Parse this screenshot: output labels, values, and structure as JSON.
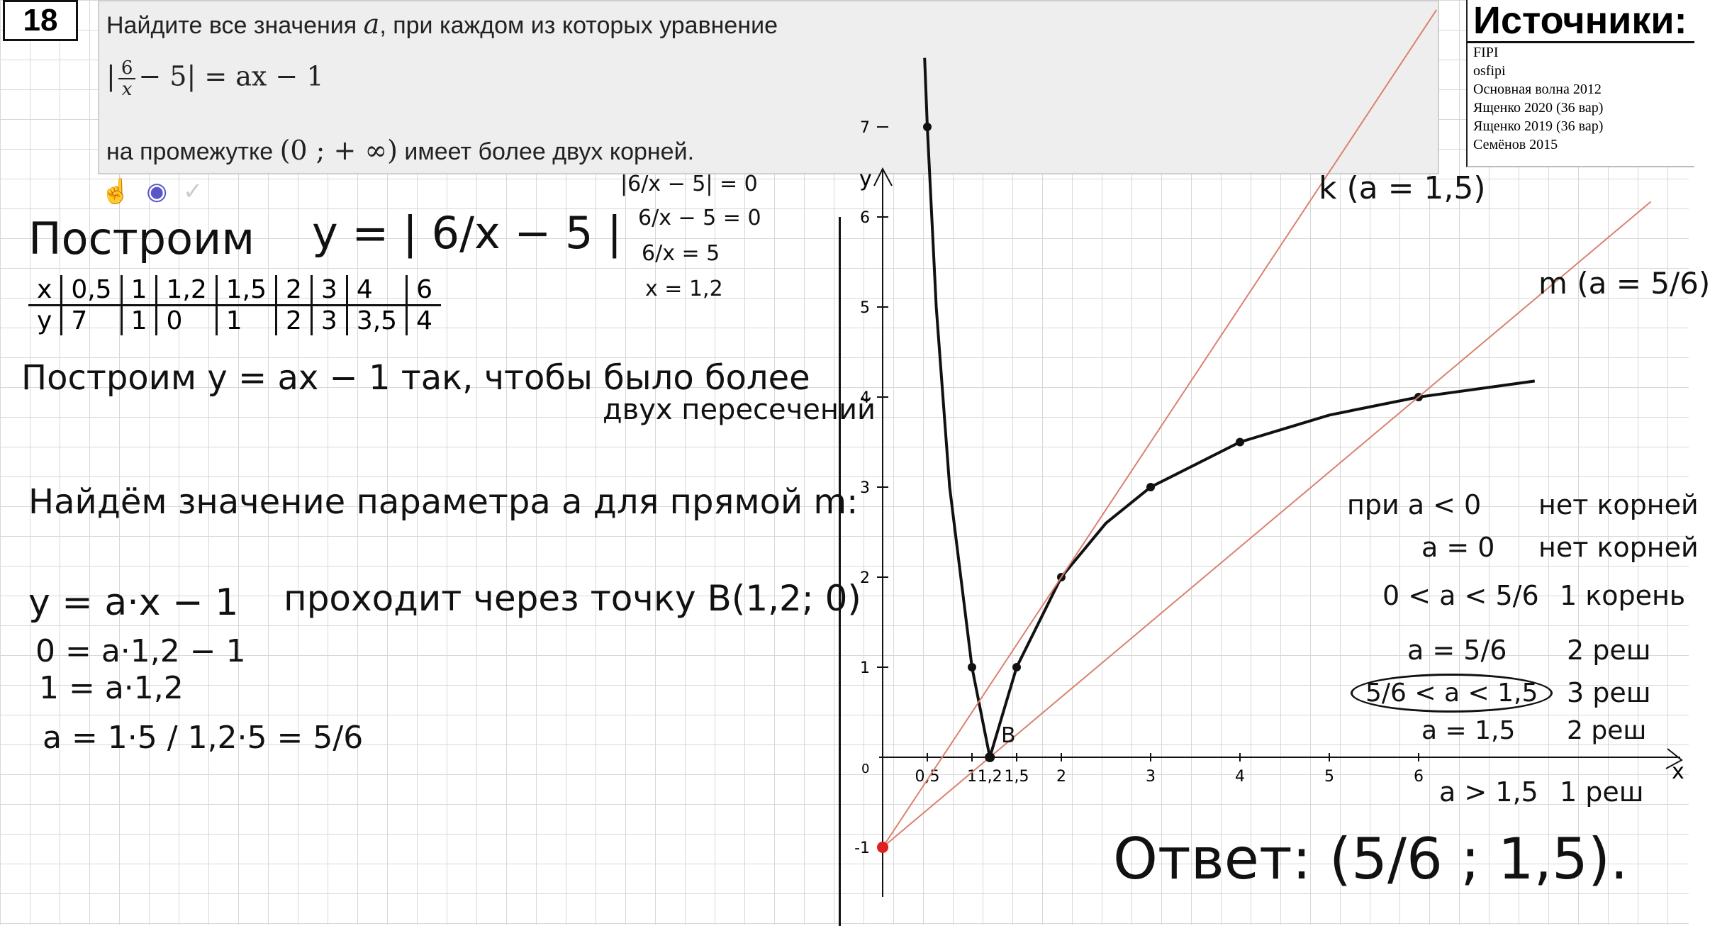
{
  "task_number": "18",
  "task": {
    "intro": "Найдите все значения ",
    "param": "a",
    "intro_tail": ", при каждом из которых уравнение",
    "eq_num": "6",
    "eq_den": "x",
    "eq_rest": "− 5| = ax − 1",
    "eq_open": "|",
    "condition_pre": "на промежутке ",
    "interval": "(0 ; + ∞)",
    "condition_post": " имеет более двух корней."
  },
  "toolbar": {
    "hand": "☝",
    "eye": "◉",
    "check": "✓"
  },
  "sources": {
    "header": "Источники:",
    "items": [
      "FIPI",
      "osfipi",
      "Основная волна 2012",
      "Ященко 2020 (36 вар)",
      "Ященко 2019 (36 вар)",
      "Семёнов 2015"
    ]
  },
  "notes": {
    "build1": "Построим",
    "func1": "y = | 6/x − 5 |",
    "table_x": [
      "x",
      "0,5",
      "1",
      "1,2",
      "1,5",
      "2",
      "3",
      "4",
      "6"
    ],
    "table_y": [
      "y",
      "7",
      "1",
      "0",
      "1",
      "2",
      "3",
      "3,5",
      "4"
    ],
    "build2": "Построим y = ax − 1 так, чтобы было более",
    "build2b": "двух пересечений",
    "find": "Найдём значение параметра a для прямой m:",
    "line_eq": "y = a·x − 1",
    "through": "проходит через точку B(1,2; 0)",
    "calc1": "0 = a·1,2 − 1",
    "calc2": "1 = a·1,2",
    "calc3": "a = 1·5 / 1,2·5 = 5/6",
    "side1": "|6/x − 5| = 0",
    "side2": "6/x − 5 = 0",
    "side3": "6/x = 5",
    "side4": "x = 1,2",
    "k_label": "k (a = 1,5)",
    "m_label": "m (a = 5/6)",
    "cases": [
      [
        "при a < 0",
        "нет корней"
      ],
      [
        "a = 0",
        "нет корней"
      ],
      [
        "0 < a < 5/6",
        "1 корень"
      ],
      [
        "a = 5/6",
        "2 реш"
      ],
      [
        "5/6 < a < 1,5",
        "3 реш"
      ],
      [
        "a = 1,5",
        "2 реш"
      ],
      [
        "a > 1,5",
        "1 реш"
      ]
    ],
    "answer": "Ответ: (5/6 ; 1,5).",
    "point_b": "B"
  },
  "colors": {
    "curve": "#111111",
    "line_k": "#d9826e",
    "line_m": "#d9826e",
    "point_red": "#e02020"
  },
  "chart_data": {
    "type": "line",
    "xlabel": "x",
    "ylabel": "y",
    "x_ticks": [
      "0",
      "0,5",
      "1",
      "1,2",
      "1,5",
      "2",
      "3",
      "4",
      "5",
      "6"
    ],
    "y_ticks": [
      "-1",
      "1",
      "2",
      "3",
      "4",
      "5",
      "6",
      "7"
    ],
    "series": [
      {
        "name": "",
        "x": [
          0.5,
          1,
          1.2,
          1.5,
          2,
          3,
          4,
          6
        ],
        "y": [
          7,
          1,
          0,
          1,
          2,
          3,
          3.5,
          4
        ]
      },
      {
        "name": "k",
        "x": [
          0,
          6.2
        ],
        "y": [
          -1,
          8.3
        ]
      },
      {
        "name": "m",
        "x": [
          0,
          8.6
        ],
        "y": [
          -1,
          6.17
        ]
      }
    ],
    "points": [
      {
        "label": "B",
        "x": 1.2,
        "y": 0
      },
      {
        "label": "",
        "x": 0,
        "y": -1
      }
    ]
  }
}
